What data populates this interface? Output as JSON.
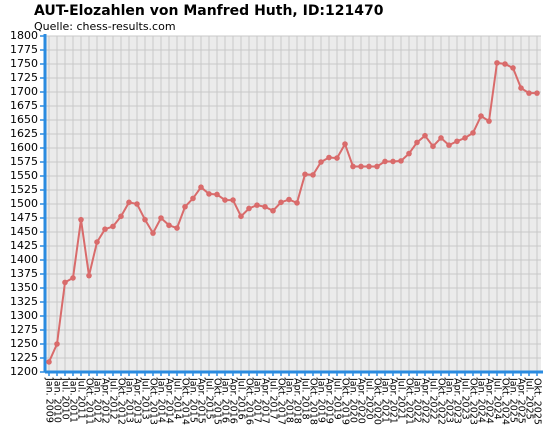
{
  "chart_data": {
    "type": "line",
    "title": "AUT-Elozahlen von Manfred Huth, ID:121470",
    "subtitle": "Quelle: chess-results.com",
    "categories": [
      "Jan. 2009",
      "Jan. 2010",
      "Jul. 2010",
      "Jan. 2011",
      "Jul. 2011",
      "Okt. 2011",
      "Jan. 2012",
      "Apr. 2012",
      "Jul. 2012",
      "Okt. 2012",
      "Jan. 2013",
      "Apr. 2013",
      "Jul. 2013",
      "Okt. 2013",
      "Jan. 2014",
      "Apr. 2014",
      "Jul. 2014",
      "Okt. 2014",
      "Jan. 2015",
      "Apr. 2015",
      "Jul. 2015",
      "Okt. 2015",
      "Jan. 2016",
      "Apr. 2016",
      "Jul. 2016",
      "Okt. 2016",
      "Jan. 2017",
      "Apr. 2017",
      "Jul. 2017",
      "Okt. 2017",
      "Jan. 2018",
      "Apr. 2018",
      "Jul. 2018",
      "Okt. 2018",
      "Jan. 2019",
      "Apr. 2019",
      "Jul. 2019",
      "Okt. 2019",
      "Jan. 2020",
      "Apr. 2020",
      "Jul. 2020",
      "Okt. 2020",
      "Jan. 2021",
      "Apr. 2021",
      "Jul. 2021",
      "Okt. 2021",
      "Jan. 2022",
      "Apr. 2022",
      "Jul. 2022",
      "Okt. 2022",
      "Jan. 2023",
      "Apr. 2023",
      "Jul. 2023",
      "Okt. 2023",
      "Jan. 2024",
      "Apr. 2024",
      "Jul. 2024",
      "Okt. 2024",
      "Jan. 2025",
      "Apr. 2025",
      "Jul. 2025",
      "Okt. 2025"
    ],
    "series": [
      {
        "name": "Elo",
        "color": "#d96b6b",
        "values": [
          1218,
          1250,
          1360,
          1368,
          1472,
          1372,
          1432,
          1455,
          1460,
          1478,
          1503,
          1500,
          1472,
          1448,
          1475,
          1462,
          1457,
          1495,
          1510,
          1530,
          1518,
          1517,
          1507,
          1507,
          1478,
          1492,
          1498,
          1495,
          1488,
          1503,
          1508,
          1502,
          1553,
          1552,
          1575,
          1583,
          1582,
          1607,
          1567,
          1567,
          1567,
          1567,
          1576,
          1576,
          1577,
          1590,
          1610,
          1622,
          1603,
          1618,
          1605,
          1612,
          1618,
          1627,
          1657,
          1648,
          1752,
          1750,
          1743,
          1707,
          1698,
          1698
        ]
      }
    ],
    "ylim": [
      1200,
      1800
    ],
    "yticks": [
      1200,
      1225,
      1250,
      1275,
      1300,
      1325,
      1350,
      1375,
      1400,
      1425,
      1450,
      1475,
      1500,
      1525,
      1550,
      1575,
      1600,
      1625,
      1650,
      1675,
      1700,
      1725,
      1750,
      1775,
      1800
    ],
    "grid": true,
    "axis_color": "#2a8be0"
  }
}
